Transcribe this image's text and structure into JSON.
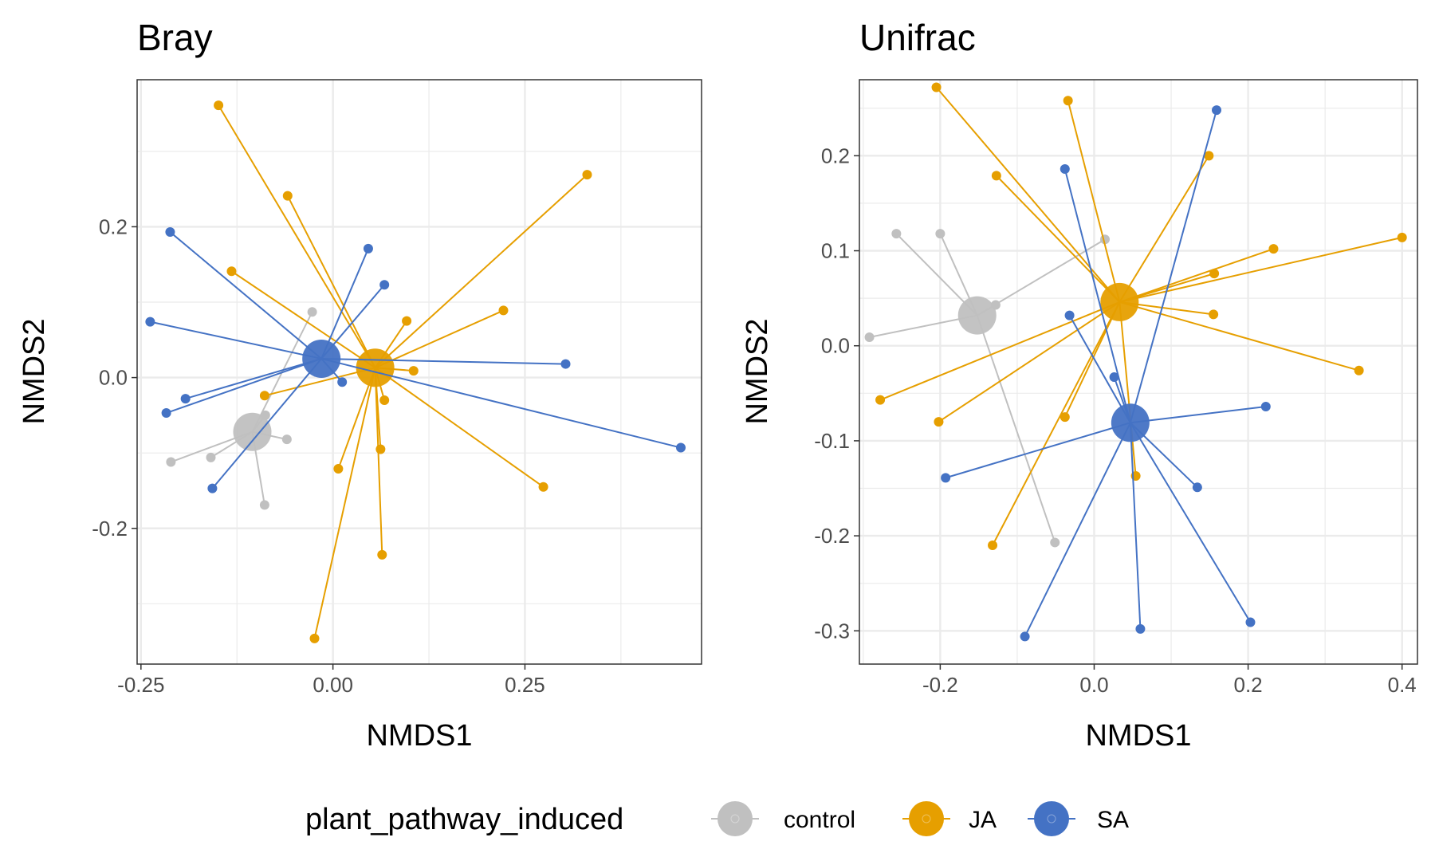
{
  "chart_data": [
    {
      "type": "scatter",
      "title": "Bray",
      "xlabel": "NMDS1",
      "ylabel": "NMDS2",
      "xlim": [
        -0.255,
        0.48
      ],
      "ylim": [
        -0.38,
        0.395
      ],
      "xticks": [
        -0.25,
        0.0,
        0.25
      ],
      "xtick_labels": [
        "-0.25",
        "0.00",
        "0.25"
      ],
      "yticks": [
        -0.2,
        0.0,
        0.2
      ],
      "ytick_labels": [
        "-0.2",
        "0.0",
        "0.2"
      ],
      "grid": true,
      "series": [
        {
          "name": "control",
          "color": "#c0c0c0",
          "centroid": [
            -0.105,
            -0.072
          ],
          "points": [
            [
              -0.027,
              0.087
            ],
            [
              -0.088,
              -0.05
            ],
            [
              -0.06,
              -0.082
            ],
            [
              -0.211,
              -0.112
            ],
            [
              -0.159,
              -0.106
            ],
            [
              -0.089,
              -0.169
            ]
          ]
        },
        {
          "name": "JA",
          "color": "#e69f00",
          "centroid": [
            0.055,
            0.013
          ],
          "points": [
            [
              -0.149,
              0.361
            ],
            [
              -0.059,
              0.241
            ],
            [
              -0.132,
              0.141
            ],
            [
              0.331,
              0.269
            ],
            [
              0.222,
              0.089
            ],
            [
              0.096,
              0.075
            ],
            [
              0.105,
              0.009
            ],
            [
              0.067,
              -0.03
            ],
            [
              0.062,
              -0.095
            ],
            [
              0.007,
              -0.121
            ],
            [
              0.274,
              -0.145
            ],
            [
              0.064,
              -0.235
            ],
            [
              -0.024,
              -0.346
            ],
            [
              -0.089,
              -0.024
            ]
          ]
        },
        {
          "name": "SA",
          "color": "#4472c4",
          "centroid": [
            -0.015,
            0.025
          ],
          "points": [
            [
              -0.212,
              0.193
            ],
            [
              -0.238,
              0.074
            ],
            [
              0.046,
              0.171
            ],
            [
              0.067,
              0.123
            ],
            [
              0.303,
              0.018
            ],
            [
              0.012,
              -0.006
            ],
            [
              -0.192,
              -0.028
            ],
            [
              -0.217,
              -0.047
            ],
            [
              -0.157,
              -0.147
            ],
            [
              0.453,
              -0.093
            ]
          ]
        }
      ]
    },
    {
      "type": "scatter",
      "title": "Unifrac",
      "xlabel": "NMDS1",
      "ylabel": "NMDS2",
      "xlim": [
        -0.305,
        0.42
      ],
      "ylim": [
        -0.335,
        0.28
      ],
      "xticks": [
        -0.2,
        0.0,
        0.2,
        0.4
      ],
      "xtick_labels": [
        "-0.2",
        "0.0",
        "0.2",
        "0.4"
      ],
      "yticks": [
        -0.3,
        -0.2,
        -0.1,
        0.0,
        0.1,
        0.2
      ],
      "ytick_labels": [
        "-0.3",
        "-0.2",
        "-0.1",
        "0.0",
        "0.1",
        "0.2"
      ],
      "grid": true,
      "series": [
        {
          "name": "control",
          "color": "#c0c0c0",
          "centroid": [
            -0.152,
            0.032
          ],
          "points": [
            [
              -0.257,
              0.118
            ],
            [
              -0.2,
              0.118
            ],
            [
              0.014,
              0.112
            ],
            [
              -0.128,
              0.043
            ],
            [
              -0.292,
              0.009
            ],
            [
              -0.051,
              -0.207
            ]
          ]
        },
        {
          "name": "JA",
          "color": "#e69f00",
          "centroid": [
            0.033,
            0.046
          ],
          "points": [
            [
              -0.205,
              0.272
            ],
            [
              -0.034,
              0.258
            ],
            [
              -0.127,
              0.179
            ],
            [
              0.149,
              0.2
            ],
            [
              0.4,
              0.114
            ],
            [
              0.233,
              0.102
            ],
            [
              0.156,
              0.076
            ],
            [
              0.155,
              0.033
            ],
            [
              0.344,
              -0.026
            ],
            [
              -0.278,
              -0.057
            ],
            [
              -0.202,
              -0.08
            ],
            [
              -0.038,
              -0.075
            ],
            [
              0.054,
              -0.137
            ],
            [
              -0.132,
              -0.21
            ]
          ]
        },
        {
          "name": "SA",
          "color": "#4472c4",
          "centroid": [
            0.047,
            -0.081
          ],
          "points": [
            [
              0.159,
              0.248
            ],
            [
              -0.038,
              0.186
            ],
            [
              -0.032,
              0.032
            ],
            [
              0.026,
              -0.033
            ],
            [
              0.223,
              -0.064
            ],
            [
              -0.193,
              -0.139
            ],
            [
              0.134,
              -0.149
            ],
            [
              0.06,
              -0.298
            ],
            [
              -0.09,
              -0.306
            ],
            [
              0.203,
              -0.291
            ]
          ]
        }
      ]
    }
  ],
  "legend": {
    "title": "plant_pathway_induced",
    "position": "bottom",
    "items": [
      {
        "label": "control",
        "color": "#c0c0c0"
      },
      {
        "label": "JA",
        "color": "#e69f00"
      },
      {
        "label": "SA",
        "color": "#4472c4"
      }
    ]
  }
}
